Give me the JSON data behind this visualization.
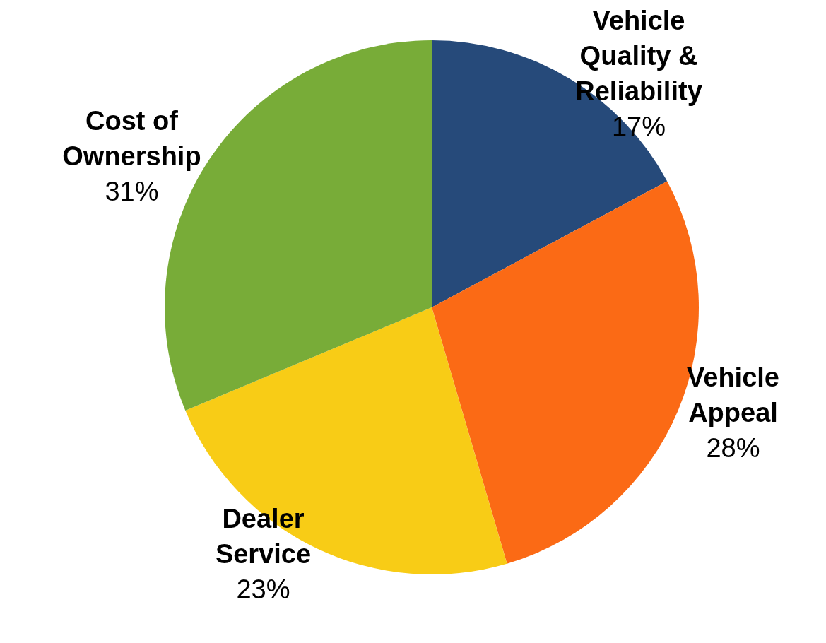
{
  "chart_data": {
    "type": "pie",
    "categories": [
      "Vehicle Quality & Reliability",
      "Vehicle Appeal",
      "Dealer Service",
      "Cost of Ownership"
    ],
    "values": [
      17,
      28,
      23,
      31
    ],
    "colors": [
      "#264a7a",
      "#fb6a15",
      "#f8cc16",
      "#78ac38"
    ],
    "value_labels": [
      "17%",
      "28%",
      "23%",
      "31%"
    ]
  }
}
